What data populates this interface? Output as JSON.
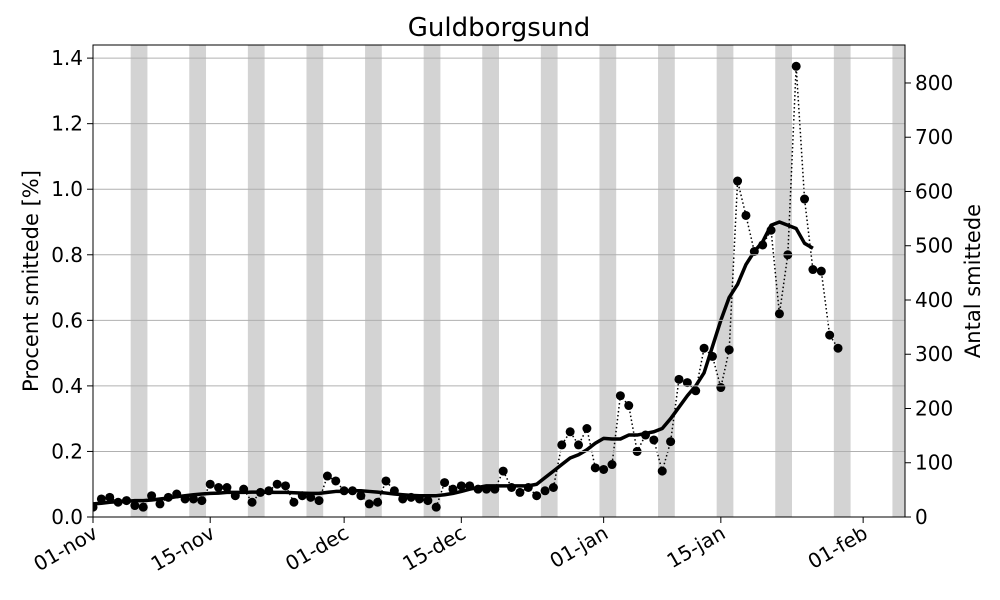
{
  "chart_data": {
    "type": "scatter-line",
    "title": "Guldborgsund",
    "y_label": "Procent smittede [%]",
    "y2_label": "Antal smittede",
    "x": [
      0,
      1,
      2,
      3,
      4,
      5,
      6,
      7,
      8,
      9,
      10,
      11,
      12,
      13,
      14,
      15,
      16,
      17,
      18,
      19,
      20,
      21,
      22,
      23,
      24,
      25,
      26,
      27,
      28,
      29,
      30,
      31,
      32,
      33,
      34,
      35,
      36,
      37,
      38,
      39,
      40,
      41,
      42,
      43,
      44,
      45,
      46,
      47,
      48,
      49,
      50,
      51,
      52,
      53,
      54,
      55,
      56,
      57,
      58,
      59,
      60,
      61,
      62,
      63,
      64,
      65,
      66,
      67,
      68,
      69,
      70,
      71,
      72,
      73,
      74,
      75,
      76,
      77,
      78,
      79,
      80,
      81,
      82,
      83,
      84,
      85,
      86,
      87,
      88,
      89
    ],
    "series": [
      {
        "color": "#000000",
        "style": "dotted-markers",
        "values": [
          0.03,
          0.055,
          0.06,
          0.045,
          0.05,
          0.035,
          0.03,
          0.065,
          0.04,
          0.06,
          0.07,
          0.055,
          0.055,
          0.05,
          0.1,
          0.09,
          0.09,
          0.065,
          0.085,
          0.045,
          0.075,
          0.08,
          0.1,
          0.095,
          0.045,
          0.065,
          0.06,
          0.05,
          0.125,
          0.11,
          0.08,
          0.08,
          0.065,
          0.04,
          0.045,
          0.11,
          0.08,
          0.055,
          0.06,
          0.055,
          0.05,
          0.03,
          0.105,
          0.085,
          0.095,
          0.095,
          0.085,
          0.085,
          0.085,
          0.14,
          0.09,
          0.075,
          0.09,
          0.065,
          0.08,
          0.09,
          0.22,
          0.26,
          0.22,
          0.27,
          0.15,
          0.145,
          0.16,
          0.37,
          0.34,
          0.2,
          0.25,
          0.235,
          0.14,
          0.23,
          0.42,
          0.41,
          0.385,
          0.515,
          0.49,
          0.395,
          0.51,
          1.025,
          0.92,
          0.81,
          0.83,
          0.875,
          0.62,
          0.8,
          1.375,
          0.97,
          0.755,
          0.75,
          0.555,
          0.515
        ]
      },
      {
        "color": "#000000",
        "style": "thick-line",
        "values": [
          0.04,
          0.042,
          0.045,
          0.047,
          0.048,
          0.05,
          0.05,
          0.052,
          0.055,
          0.058,
          0.062,
          0.065,
          0.068,
          0.07,
          0.072,
          0.073,
          0.075,
          0.075,
          0.075,
          0.076,
          0.076,
          0.075,
          0.075,
          0.075,
          0.074,
          0.073,
          0.072,
          0.072,
          0.075,
          0.078,
          0.078,
          0.08,
          0.08,
          0.078,
          0.076,
          0.073,
          0.07,
          0.068,
          0.066,
          0.065,
          0.065,
          0.065,
          0.068,
          0.072,
          0.078,
          0.085,
          0.09,
          0.095,
          0.095,
          0.095,
          0.095,
          0.095,
          0.095,
          0.1,
          0.12,
          0.14,
          0.16,
          0.18,
          0.19,
          0.205,
          0.225,
          0.24,
          0.238,
          0.238,
          0.25,
          0.25,
          0.255,
          0.26,
          0.27,
          0.3,
          0.335,
          0.37,
          0.4,
          0.44,
          0.52,
          0.6,
          0.67,
          0.71,
          0.77,
          0.81,
          0.84,
          0.89,
          0.9,
          0.89,
          0.88,
          0.835,
          0.82,
          null,
          null,
          null
        ]
      }
    ],
    "xlim": [
      0,
      97
    ],
    "xticks": [
      {
        "value": 0,
        "label": "01-nov"
      },
      {
        "value": 14,
        "label": "15-nov"
      },
      {
        "value": 30,
        "label": "01-dec"
      },
      {
        "value": 44,
        "label": "15-dec"
      },
      {
        "value": 61,
        "label": "01-jan"
      },
      {
        "value": 75,
        "label": "15-jan"
      },
      {
        "value": 92,
        "label": "01-feb"
      }
    ],
    "ylim": [
      0,
      1.44
    ],
    "yticks": [
      {
        "value": 0,
        "label": "0.0"
      },
      0.2,
      0.4,
      0.6,
      0.8,
      {
        "value": 1,
        "label": "1.0"
      },
      1.2,
      1.4
    ],
    "y2lim": [
      0,
      870
    ],
    "y2ticks": [
      0,
      100,
      200,
      300,
      400,
      500,
      600,
      700,
      800
    ],
    "grid": true,
    "shaded_spans": [
      [
        4.5,
        6.5
      ],
      [
        11.5,
        13.5
      ],
      [
        18.5,
        20.5
      ],
      [
        25.5,
        27.5
      ],
      [
        32.5,
        34.5
      ],
      [
        39.5,
        41.5
      ],
      [
        46.5,
        48.5
      ],
      [
        53.5,
        55.5
      ],
      [
        60.5,
        62.5
      ],
      [
        67.5,
        69.5
      ],
      [
        74.5,
        76.5
      ],
      [
        81.5,
        83.5
      ],
      [
        88.5,
        90.5
      ],
      [
        95.5,
        97.5
      ]
    ],
    "shade_color": "#d3d3d3"
  }
}
